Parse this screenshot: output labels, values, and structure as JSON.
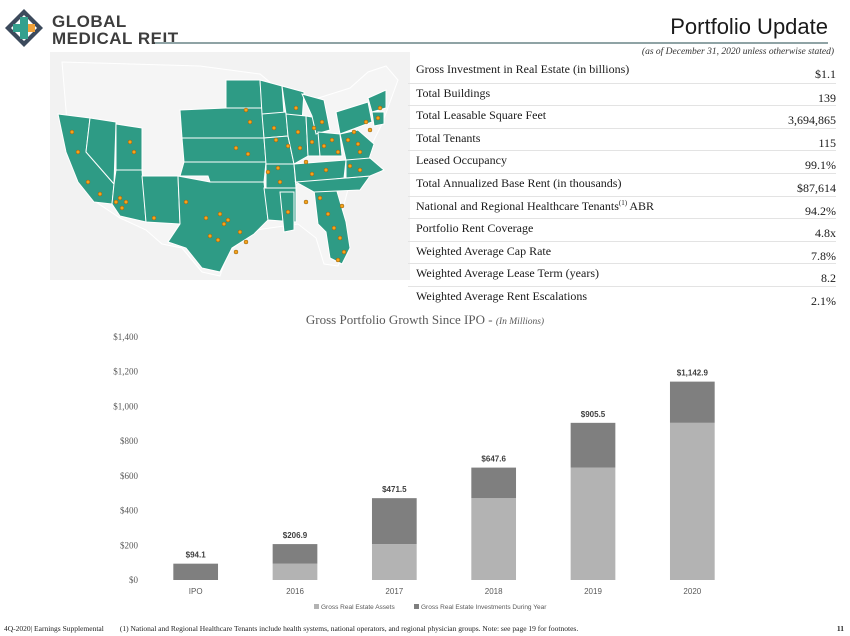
{
  "header": {
    "brand_line1": "GLOBAL",
    "brand_line2": "MEDICAL REIT",
    "page_title": "Portfolio Update",
    "as_of": "(as of December 31, 2020 unless otherwise stated)",
    "colors": {
      "brand_teal": "#34a08e",
      "brand_orange": "#f0a23a",
      "brand_navy": "#3c4a5c"
    }
  },
  "map": {
    "region": "United States",
    "state_fill": "#2e9b85",
    "inactive_fill": "#f2f2f2",
    "marker_color": "#f4a31c"
  },
  "stats": [
    {
      "label": "Gross Investment in Real Estate (in billions)",
      "value": "$1.1"
    },
    {
      "label": "Total Buildings",
      "value": "139"
    },
    {
      "label": "Total Leasable Square Feet",
      "value": "3,694,865"
    },
    {
      "label": "Total Tenants",
      "value": "115"
    },
    {
      "label": "Leased Occupancy",
      "value": "99.1%"
    },
    {
      "label": "Total Annualized Base Rent (in thousands)",
      "value": "$87,614"
    },
    {
      "label": "National and Regional Healthcare Tenants",
      "sup": "(1)",
      "label_suffix": " ABR",
      "value": "94.2%"
    },
    {
      "label": "Portfolio Rent Coverage",
      "value": "4.8x"
    },
    {
      "label": "Weighted Average Cap Rate",
      "value": "7.8%"
    },
    {
      "label": "Weighted Average Lease Term (years)",
      "value": "8.2"
    },
    {
      "label": "Weighted Average Rent Escalations",
      "value": "2.1%"
    }
  ],
  "chart_data": {
    "type": "bar",
    "title": "Gross Portfolio Growth Since IPO -",
    "subtitle": "(In Millions)",
    "categories": [
      "IPO",
      "2016",
      "2017",
      "2018",
      "2019",
      "2020"
    ],
    "series": [
      {
        "name": "Gross Real Estate Assets",
        "values": [
          0,
          94.1,
          206.9,
          471.5,
          647.6,
          905.5
        ],
        "color": "#b3b3b3"
      },
      {
        "name": "Gross Real Estate Investments During Year",
        "values": [
          94.1,
          112.8,
          264.6,
          176.1,
          257.9,
          237.4
        ],
        "color": "#7f7f7f"
      }
    ],
    "data_labels": [
      "$94.1",
      "$206.9",
      "$471.5",
      "$647.6",
      "$905.5",
      "$1,142.9"
    ],
    "totals": [
      94.1,
      206.9,
      471.5,
      647.6,
      905.5,
      1142.9
    ],
    "y_ticks": [
      "$0",
      "$200",
      "$400",
      "$600",
      "$800",
      "$1,000",
      "$1,200",
      "$1,400"
    ],
    "ylim": [
      0,
      1400
    ],
    "stacked": true,
    "legend_position": "bottom",
    "grid": false
  },
  "footer": {
    "left": "4Q-2020| Earnings Supplemental",
    "note": "(1)  National and Regional Healthcare Tenants include health systems, national operators, and regional physician groups.  Note: see page 19 for footnotes.",
    "page_number": "11"
  }
}
